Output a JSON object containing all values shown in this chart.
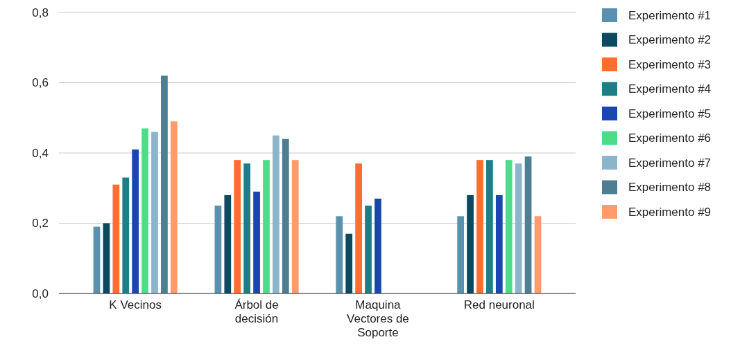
{
  "chart_data": {
    "type": "bar",
    "categories": [
      "K Vecinos",
      "Árbol de decisión",
      "Maquina Vectores de Soporte",
      "Red neuronal"
    ],
    "series": [
      {
        "name": "Experimento #1",
        "color": "#5a91af",
        "values": [
          0.19,
          0.25,
          0.22,
          0.22
        ]
      },
      {
        "name": "Experimento #2",
        "color": "#0c4a62",
        "values": [
          0.2,
          0.28,
          0.17,
          0.28
        ]
      },
      {
        "name": "Experimento #3",
        "color": "#ff6d30",
        "values": [
          0.31,
          0.38,
          0.37,
          0.38
        ]
      },
      {
        "name": "Experimento #4",
        "color": "#1f7d88",
        "values": [
          0.33,
          0.37,
          0.25,
          0.38
        ]
      },
      {
        "name": "Experimento #5",
        "color": "#1a47ad",
        "values": [
          0.41,
          0.29,
          0.27,
          0.28
        ]
      },
      {
        "name": "Experimento #6",
        "color": "#4fdc8a",
        "values": [
          0.47,
          0.38,
          null,
          0.38
        ]
      },
      {
        "name": "Experimento #7",
        "color": "#8cb5cb",
        "values": [
          0.46,
          0.45,
          null,
          0.37
        ]
      },
      {
        "name": "Experimento #8",
        "color": "#4e7e92",
        "values": [
          0.62,
          0.44,
          null,
          0.39
        ]
      },
      {
        "name": "Experimento #9",
        "color": "#ff9b6c",
        "values": [
          0.49,
          0.38,
          null,
          0.22
        ]
      }
    ],
    "ylim": [
      0,
      0.8
    ],
    "yticks": [
      {
        "value": 0,
        "label": "0,0"
      },
      {
        "value": 0.2,
        "label": "0,2"
      },
      {
        "value": 0.4,
        "label": "0,4"
      },
      {
        "value": 0.6,
        "label": "0,6"
      },
      {
        "value": 0.8,
        "label": "0,8"
      }
    ],
    "grid": "y",
    "legend": "right"
  }
}
